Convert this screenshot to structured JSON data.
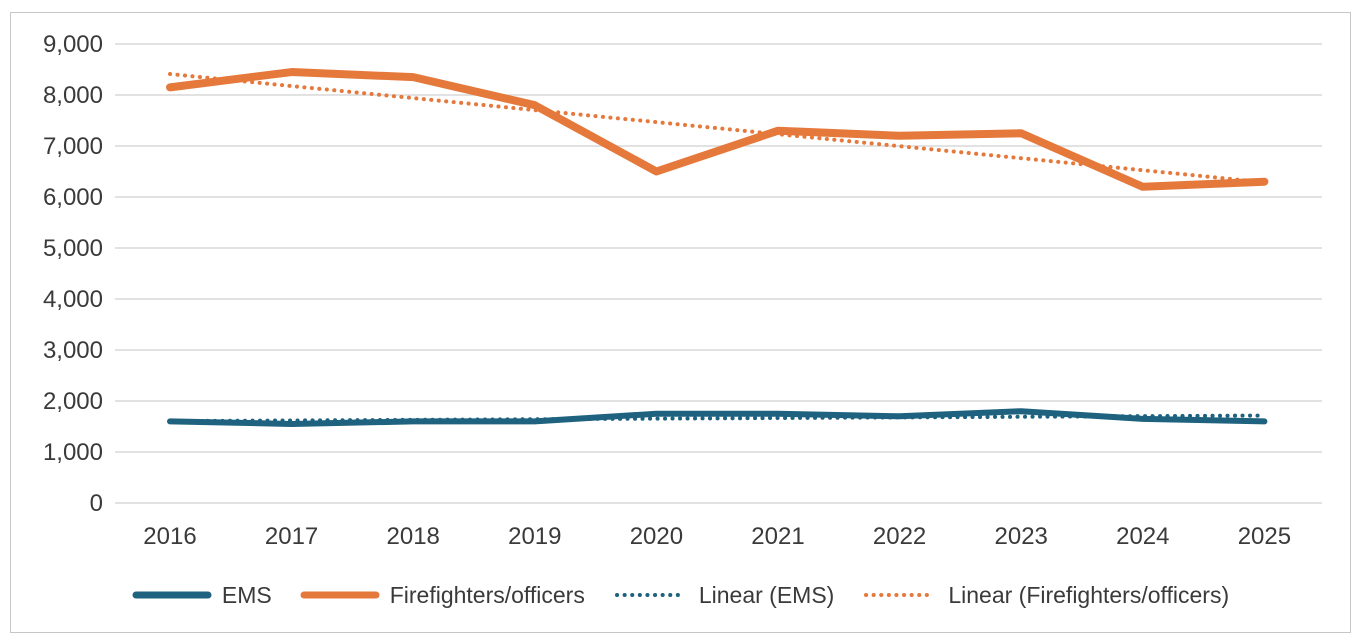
{
  "chart_data": {
    "type": "line",
    "x": [
      "2016",
      "2017",
      "2018",
      "2019",
      "2020",
      "2021",
      "2022",
      "2023",
      "2024",
      "2025"
    ],
    "ylim": [
      0,
      9000
    ],
    "ytick_step": 1000,
    "ytick_labels": [
      "0",
      "1,000",
      "2,000",
      "3,000",
      "4,000",
      "5,000",
      "6,000",
      "7,000",
      "8,000",
      "9,000"
    ],
    "grid": "horizontal-only",
    "legend_position": "bottom",
    "series": [
      {
        "name": "EMS",
        "style": "solid",
        "color": "#1E627F",
        "stroke_width": 6,
        "values": [
          1600,
          1550,
          1600,
          1600,
          1750,
          1750,
          1700,
          1800,
          1650,
          1600
        ]
      },
      {
        "name": "Firefighters/officers",
        "style": "solid",
        "color": "#E5793B",
        "stroke_width": 8,
        "values": [
          8150,
          8450,
          8350,
          7800,
          6500,
          7300,
          7200,
          7250,
          6200,
          6300
        ]
      },
      {
        "name": "Linear (EMS)",
        "style": "dotted",
        "color": "#1E627F",
        "stroke_width": 4,
        "trend_endpoints": [
          1606,
          1715
        ]
      },
      {
        "name": "Linear (Firefighters/officers)",
        "style": "dotted",
        "color": "#E5793B",
        "stroke_width": 4,
        "trend_endpoints": [
          8411,
          6289
        ]
      }
    ]
  },
  "colors": {
    "grid": "#D9D9D9",
    "border": "#C6C6C6",
    "text": "#3A3A3A",
    "background": "#FFFFFF"
  }
}
